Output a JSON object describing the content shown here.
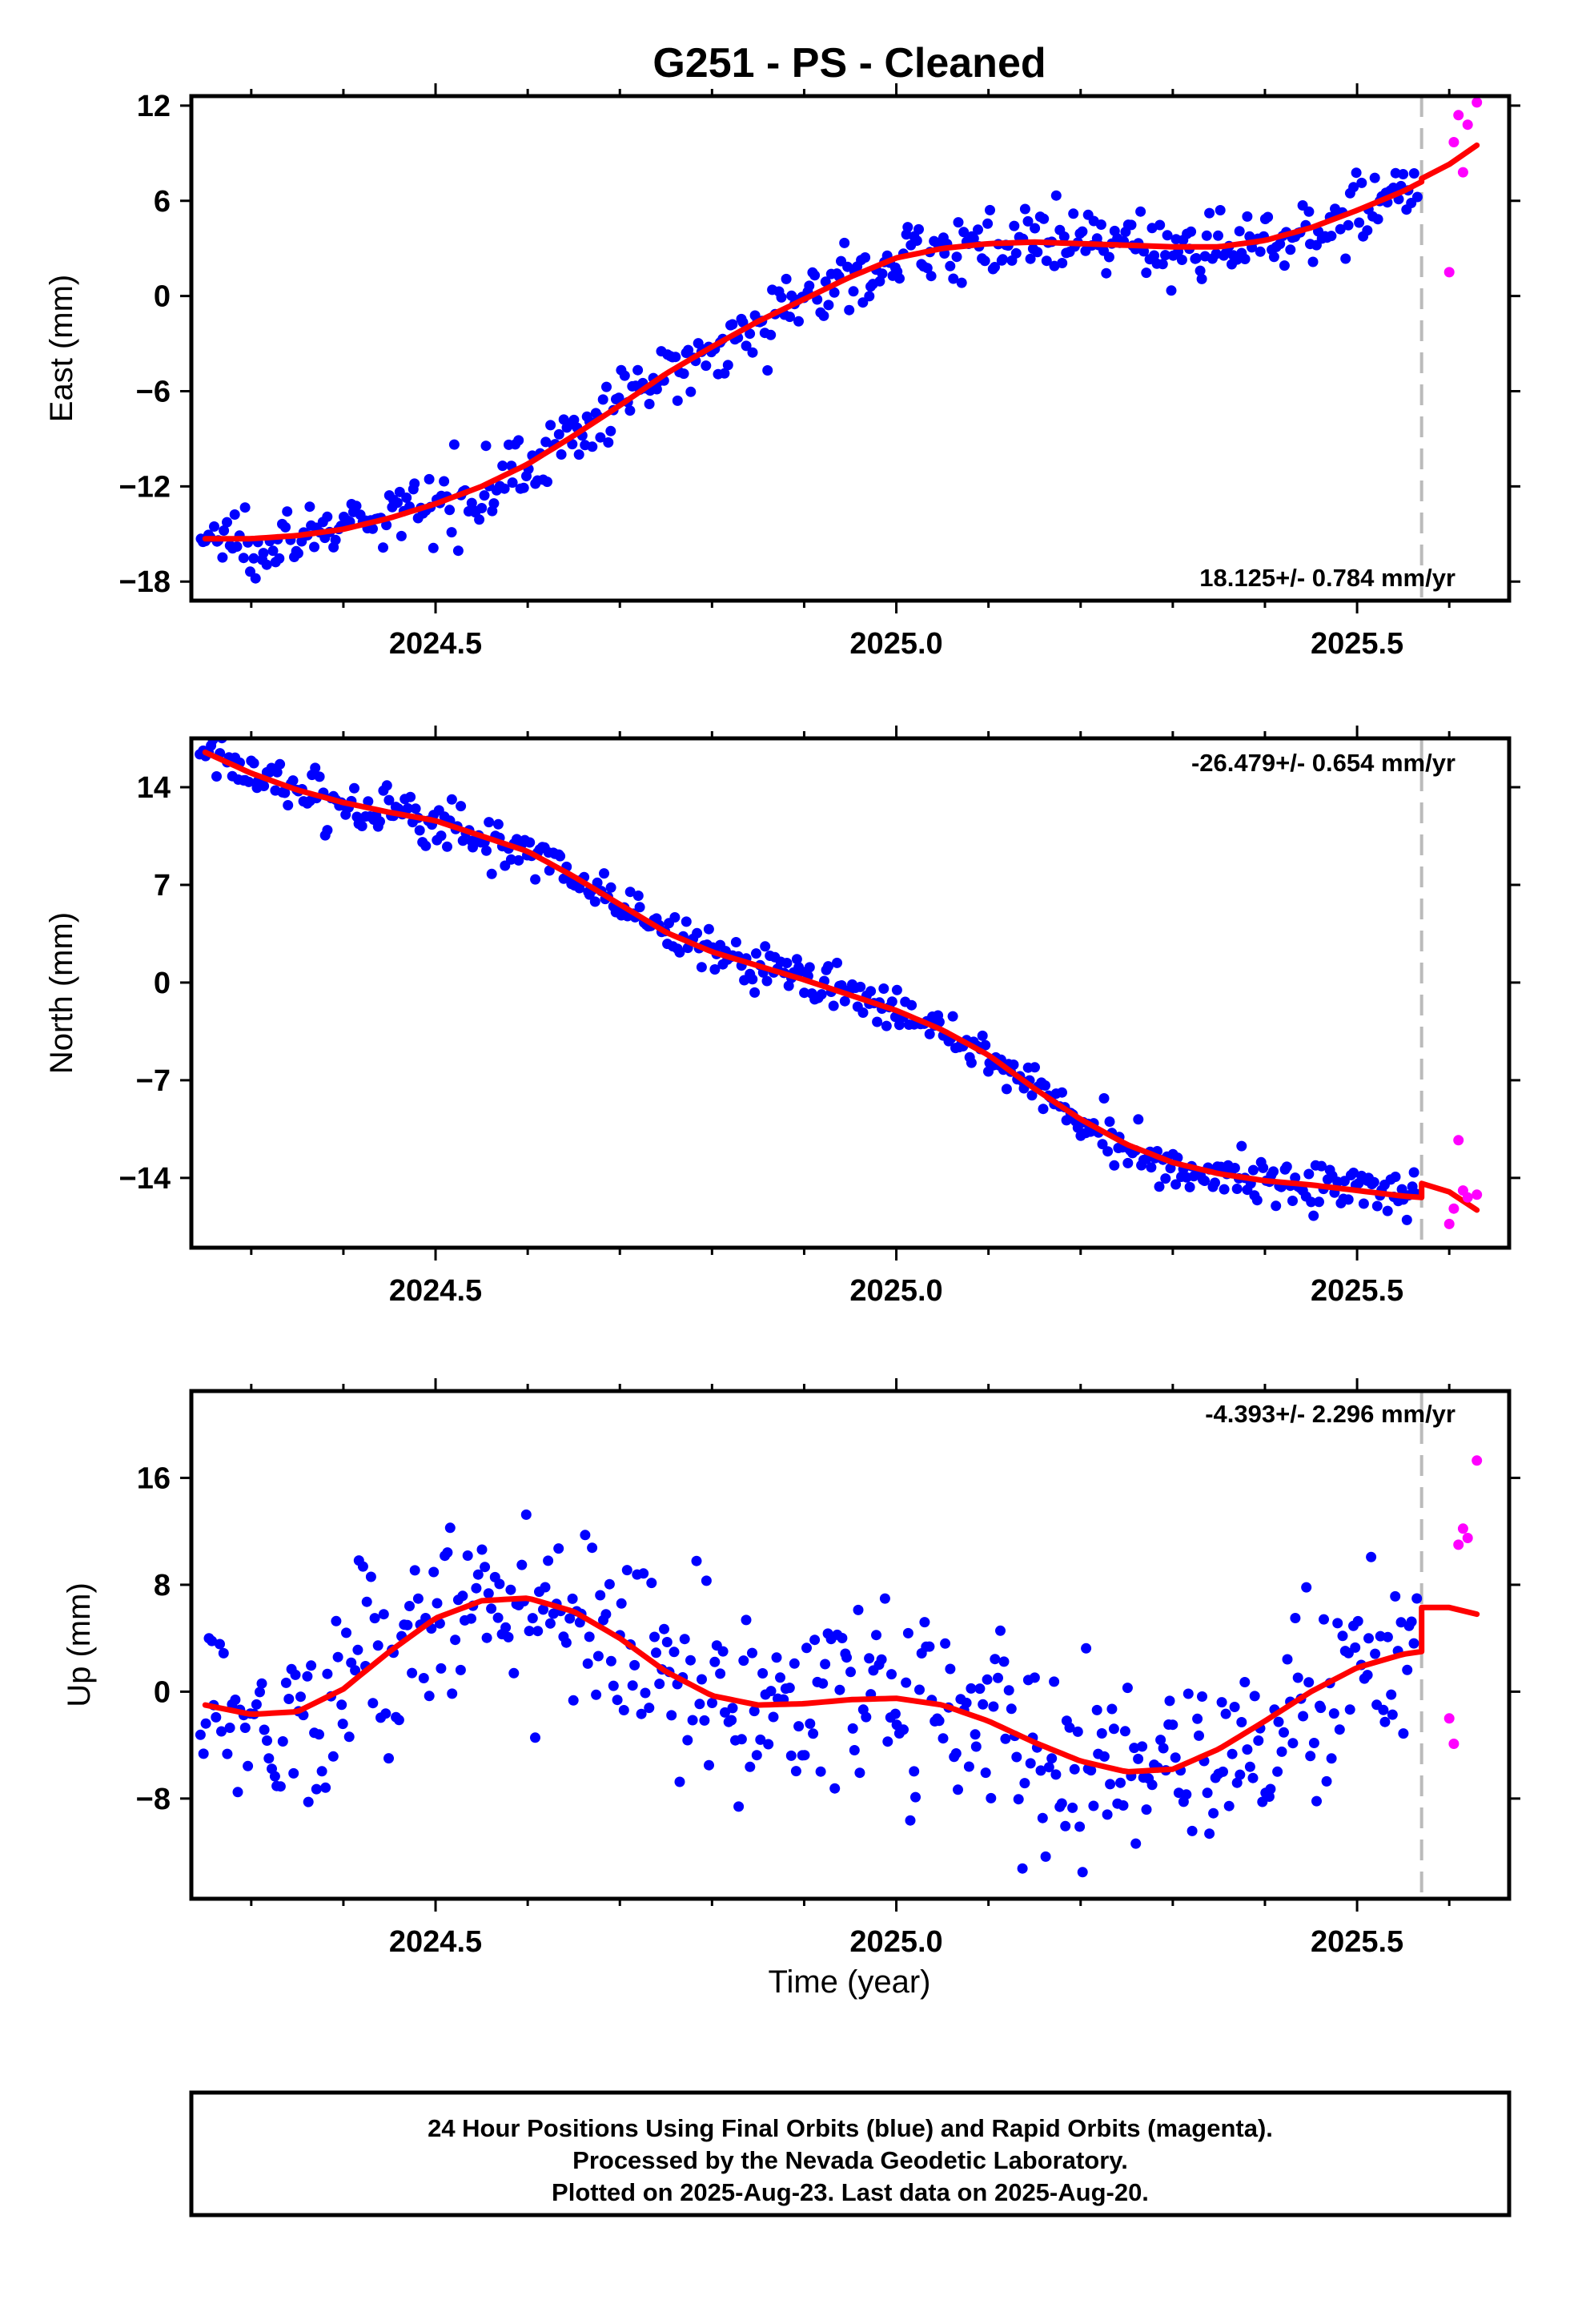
{
  "title": "G251  - PS - Cleaned",
  "xlabel": "Time (year)",
  "footer": {
    "line1": "24 Hour Positions Using Final Orbits (blue) and Rapid Orbits (magenta).",
    "line2": "Processed by the Nevada Geodetic Laboratory.",
    "line3": "Plotted on 2025-Aug-23. Last data on 2025-Aug-20."
  },
  "colors": {
    "final": "#0000ff",
    "rapid": "#ff00ff",
    "model": "#ff0000",
    "break_line": "#bbbbbb"
  },
  "chart_data": [
    {
      "type": "scatter",
      "panel": "east",
      "ylabel": "East (mm)",
      "rate_text": "18.125+/- 0.784 mm/yr",
      "xlim": [
        2024.235,
        2025.665
      ],
      "ylim": [
        -19.2,
        12.6
      ],
      "xticks": [
        2024.5,
        2025.0,
        2025.5
      ],
      "xtick_labels": [
        "2024.5",
        "2025.0",
        "2025.5"
      ],
      "yticks": [
        -18,
        -12,
        -6,
        0,
        6,
        12
      ],
      "ytick_labels": [
        "−18",
        "−12",
        "−6",
        "0",
        "6",
        "12"
      ],
      "grid": false,
      "break_line_x": 2025.57,
      "model_fit": {
        "x": [
          2024.25,
          2024.3,
          2024.35,
          2024.4,
          2024.45,
          2024.5,
          2024.55,
          2024.6,
          2024.65,
          2024.7,
          2024.75,
          2024.8,
          2024.85,
          2024.9,
          2024.95,
          2025.0,
          2025.05,
          2025.1,
          2025.15,
          2025.2,
          2025.25,
          2025.3,
          2025.35,
          2025.4,
          2025.45,
          2025.5,
          2025.55,
          2025.57
        ],
        "y": [
          -15.3,
          -15.3,
          -15.1,
          -14.7,
          -14.0,
          -13.1,
          -12.0,
          -10.6,
          -8.8,
          -6.9,
          -4.9,
          -3.2,
          -1.6,
          -0.2,
          1.2,
          2.4,
          3.0,
          3.3,
          3.4,
          3.3,
          3.2,
          3.1,
          3.1,
          3.5,
          4.3,
          5.4,
          6.6,
          7.2
        ],
        "rapid_x": [
          2025.57,
          2025.6,
          2025.63
        ],
        "rapid_y": [
          7.4,
          8.3,
          9.5
        ]
      },
      "rapid_points": {
        "x": [
          2025.6,
          2025.605,
          2025.61,
          2025.615,
          2025.62,
          2025.63
        ],
        "y": [
          1.5,
          9.7,
          11.4,
          7.8,
          10.8,
          12.2
        ]
      },
      "final_points": {
        "start": 2024.245,
        "end": 2025.565,
        "trend_x": [
          2024.25,
          2024.4,
          2024.6,
          2024.8,
          2025.0,
          2025.2,
          2025.4,
          2025.56
        ],
        "trend_y": [
          -15.3,
          -14.7,
          -10.6,
          -3.2,
          2.4,
          3.3,
          3.5,
          7.0
        ],
        "scatter_sd": 1.0
      }
    },
    {
      "type": "scatter",
      "panel": "north",
      "ylabel": "North (mm)",
      "rate_text": "-26.479+/- 0.654 mm/yr",
      "xlim": [
        2024.235,
        2025.665
      ],
      "ylim": [
        -19,
        17.5
      ],
      "xticks": [
        2024.5,
        2025.0,
        2025.5
      ],
      "xtick_labels": [
        "2024.5",
        "2025.0",
        "2025.5"
      ],
      "yticks": [
        -14,
        -7,
        0,
        7,
        14
      ],
      "ytick_labels": [
        "−14",
        "−7",
        "0",
        "7",
        "14"
      ],
      "grid": false,
      "break_line_x": 2025.57,
      "model_fit": {
        "x": [
          2024.25,
          2024.3,
          2024.35,
          2024.4,
          2024.45,
          2024.5,
          2024.55,
          2024.6,
          2024.65,
          2024.7,
          2024.75,
          2024.8,
          2024.85,
          2024.9,
          2024.95,
          2025.0,
          2025.05,
          2025.1,
          2025.15,
          2025.2,
          2025.25,
          2025.3,
          2025.35,
          2025.4,
          2025.45,
          2025.5,
          2025.55,
          2025.57
        ],
        "y": [
          16.5,
          15.0,
          13.8,
          12.9,
          12.2,
          11.6,
          10.5,
          9.4,
          7.6,
          5.6,
          3.6,
          2.2,
          1.2,
          0.2,
          -0.9,
          -2.0,
          -3.4,
          -5.2,
          -7.6,
          -9.8,
          -11.6,
          -12.9,
          -13.7,
          -14.2,
          -14.5,
          -14.9,
          -15.3,
          -15.4
        ],
        "rapid_x": [
          2025.57,
          2025.6,
          2025.63
        ],
        "rapid_y": [
          -14.4,
          -15.0,
          -16.3
        ]
      },
      "rapid_points": {
        "x": [
          2025.6,
          2025.605,
          2025.61,
          2025.615,
          2025.62,
          2025.63
        ],
        "y": [
          -17.3,
          -16.2,
          -11.3,
          -14.9,
          -15.4,
          -15.2
        ]
      },
      "final_points": {
        "start": 2024.245,
        "end": 2025.565,
        "trend_x": [
          2024.25,
          2024.4,
          2024.6,
          2024.8,
          2025.0,
          2025.2,
          2025.4,
          2025.56
        ],
        "trend_y": [
          16.5,
          12.9,
          9.4,
          2.2,
          -2.0,
          -9.8,
          -14.2,
          -15.3
        ],
        "scatter_sd": 0.9
      }
    },
    {
      "type": "scatter",
      "panel": "up",
      "ylabel": "Up (mm)",
      "rate_text": "-4.393+/- 2.296 mm/yr",
      "xlim": [
        2024.235,
        2025.665
      ],
      "ylim": [
        -15.5,
        22.5
      ],
      "xticks": [
        2024.5,
        2025.0,
        2025.5
      ],
      "xtick_labels": [
        "2024.5",
        "2025.0",
        "2025.5"
      ],
      "yticks": [
        -8,
        0,
        8,
        16
      ],
      "ytick_labels": [
        "−8",
        "0",
        "8",
        "16"
      ],
      "grid": false,
      "break_line_x": 2025.57,
      "model_fit": {
        "x": [
          2024.25,
          2024.3,
          2024.35,
          2024.4,
          2024.45,
          2024.5,
          2024.55,
          2024.6,
          2024.65,
          2024.7,
          2024.75,
          2024.8,
          2024.85,
          2024.9,
          2024.95,
          2025.0,
          2025.05,
          2025.1,
          2025.15,
          2025.2,
          2025.25,
          2025.3,
          2025.35,
          2025.4,
          2025.45,
          2025.5,
          2025.55,
          2025.57
        ],
        "y": [
          -1.0,
          -1.7,
          -1.5,
          0.2,
          3.0,
          5.5,
          6.8,
          7.0,
          6.0,
          4.0,
          1.5,
          -0.3,
          -1.0,
          -0.9,
          -0.6,
          -0.5,
          -1.0,
          -2.2,
          -3.8,
          -5.2,
          -6.0,
          -5.8,
          -4.3,
          -2.2,
          0.0,
          1.8,
          2.8,
          3.0
        ],
        "rapid_x": [
          2025.57,
          2025.6,
          2025.63
        ],
        "rapid_y": [
          6.3,
          6.3,
          5.8
        ]
      },
      "rapid_points": {
        "x": [
          2025.6,
          2025.605,
          2025.61,
          2025.615,
          2025.62,
          2025.63
        ],
        "y": [
          -2.0,
          -3.9,
          11.0,
          12.2,
          11.5,
          17.3
        ]
      },
      "final_points": {
        "start": 2024.245,
        "end": 2025.565,
        "trend_x": [
          2024.25,
          2024.4,
          2024.6,
          2024.8,
          2025.0,
          2025.2,
          2025.4,
          2025.56
        ],
        "trend_y": [
          -1.0,
          0.2,
          7.0,
          -0.3,
          -0.5,
          -5.2,
          -2.2,
          3.0
        ],
        "scatter_sd": 3.6
      }
    }
  ]
}
